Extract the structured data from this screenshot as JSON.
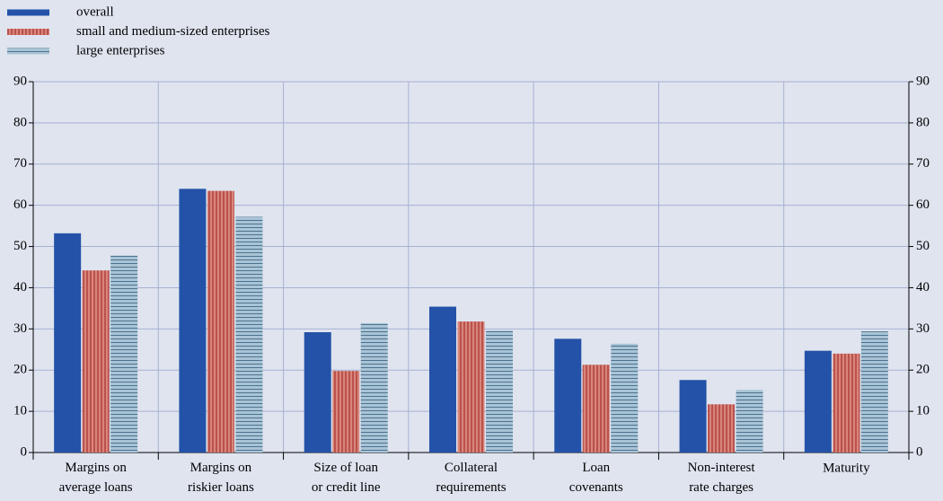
{
  "chart_data": {
    "type": "bar",
    "categories": [
      "Margins on\naverage loans",
      "Margins on\nriskier loans",
      "Size of loan\nor credit line",
      "Collateral\nrequirements",
      "Loan\ncovenants",
      "Non-interest\nrate charges",
      "Maturity"
    ],
    "series": [
      {
        "name": "overall",
        "color": "#2352a8",
        "values": [
          53.2,
          64,
          29.2,
          35.4,
          27.6,
          17.6,
          24.7
        ]
      },
      {
        "name": "small and medium-sized enterprises",
        "color": "#d9857a",
        "values": [
          44.2,
          63.5,
          19.8,
          31.8,
          21.3,
          11.7,
          24.0
        ]
      },
      {
        "name": "large enterprises",
        "color": "#a9c4d6",
        "values": [
          47.8,
          57.2,
          31.4,
          29.6,
          26.4,
          15.2,
          29.4
        ]
      }
    ],
    "ylim": [
      0,
      90
    ],
    "yticks": [
      0,
      10,
      20,
      30,
      40,
      50,
      60,
      70,
      80,
      90
    ],
    "y2lim": [
      0,
      90
    ],
    "y2ticks": [
      0,
      10,
      20,
      30,
      40,
      50,
      60,
      70,
      80,
      90
    ],
    "grid": true
  }
}
